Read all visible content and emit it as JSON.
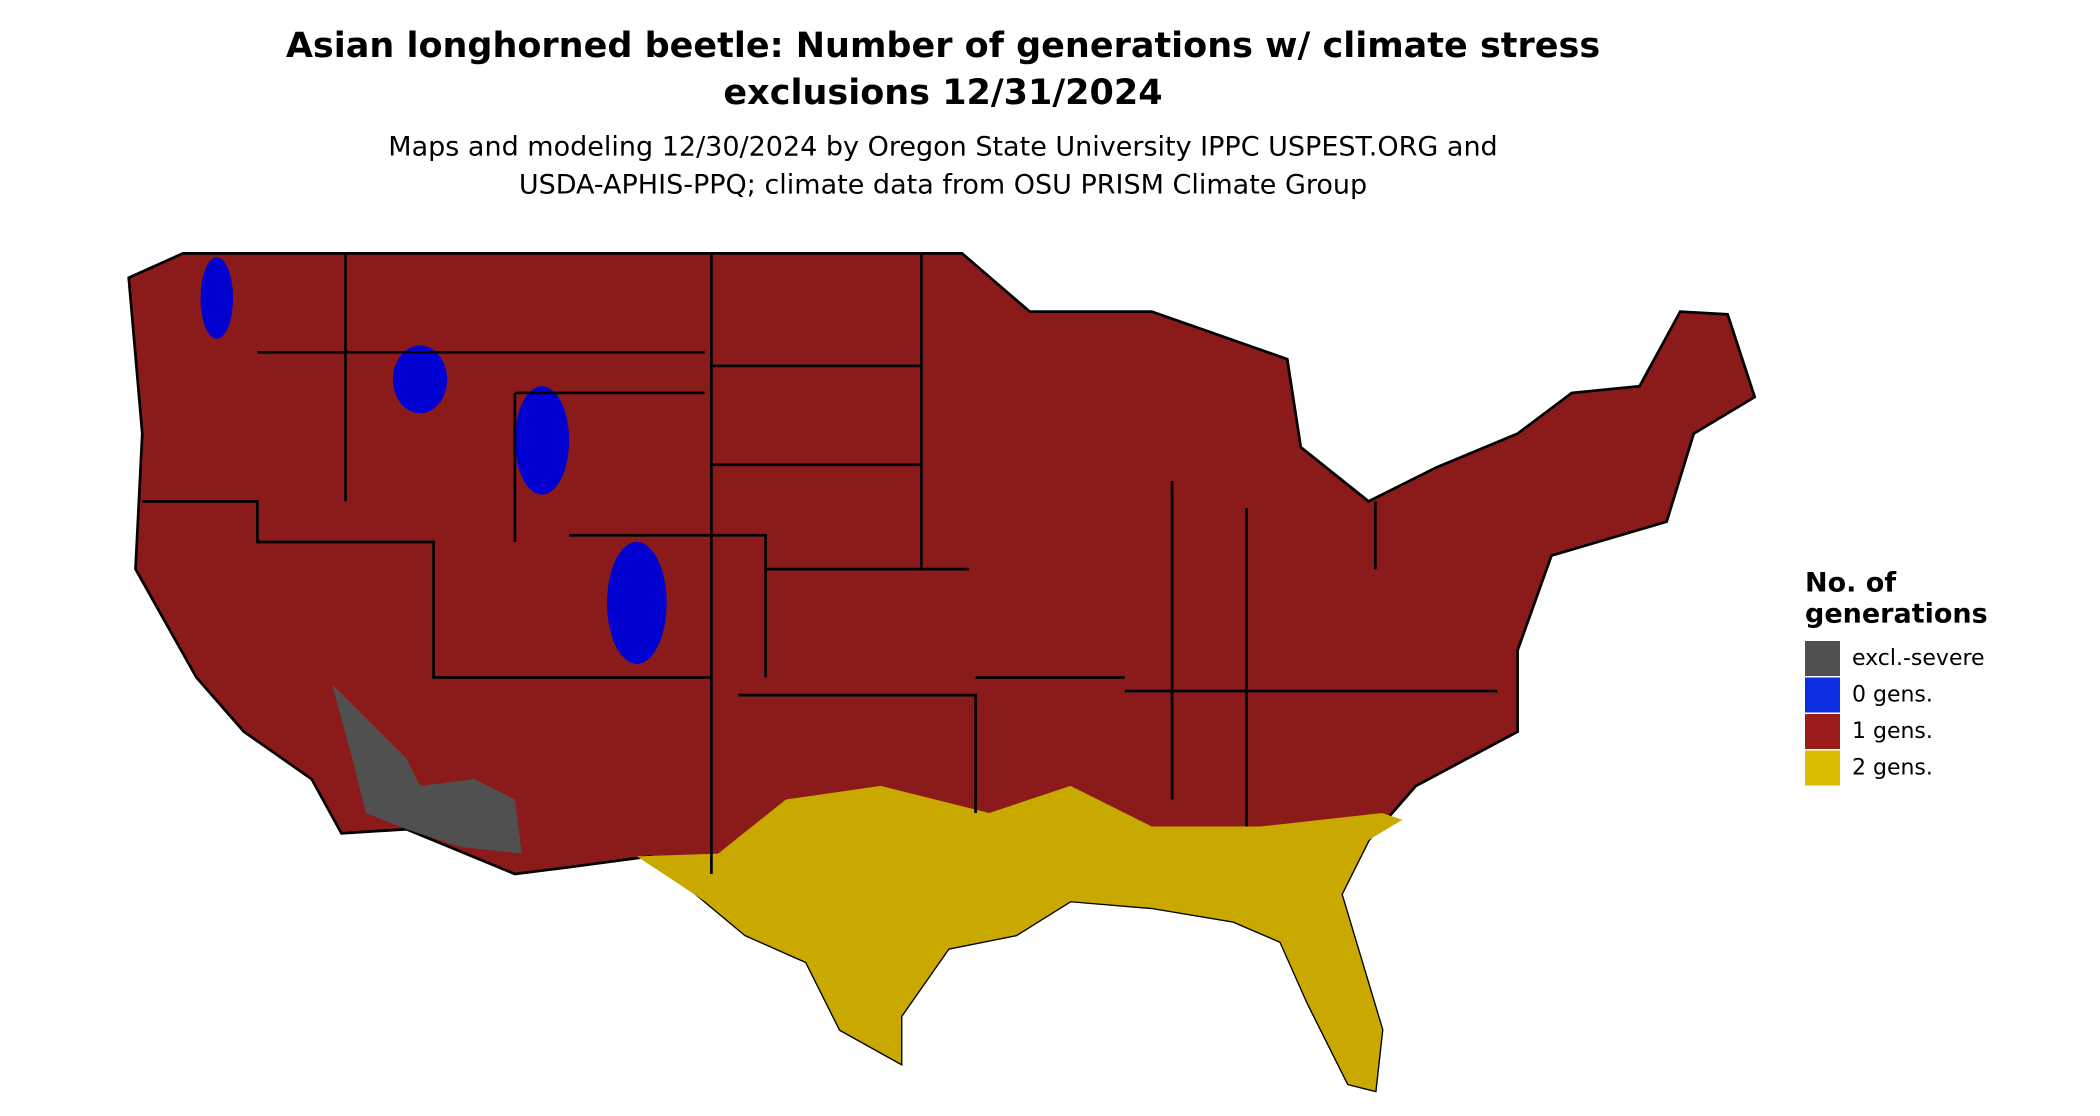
{
  "header": {
    "title_lines": [
      "Asian longhorned beetle: Number of generations w/ climate stress",
      "exclusions 12/31/2024"
    ],
    "subtitle_lines": [
      "Maps and modeling 12/30/2024 by Oregon State University IPPC USPEST.ORG and",
      "USDA-APHIS-PPQ; climate data from OSU PRISM Climate Group"
    ]
  },
  "legend": {
    "title_lines": [
      "No. of",
      "generations"
    ],
    "items": [
      {
        "label": "excl.-severe",
        "color": "#505050"
      },
      {
        "label": "0 gens.",
        "color": "#0a2ee0"
      },
      {
        "label": "1 gens.",
        "color": "#9b1c1a"
      },
      {
        "label": "2 gens.",
        "color": "#d8bc00"
      }
    ]
  }
}
